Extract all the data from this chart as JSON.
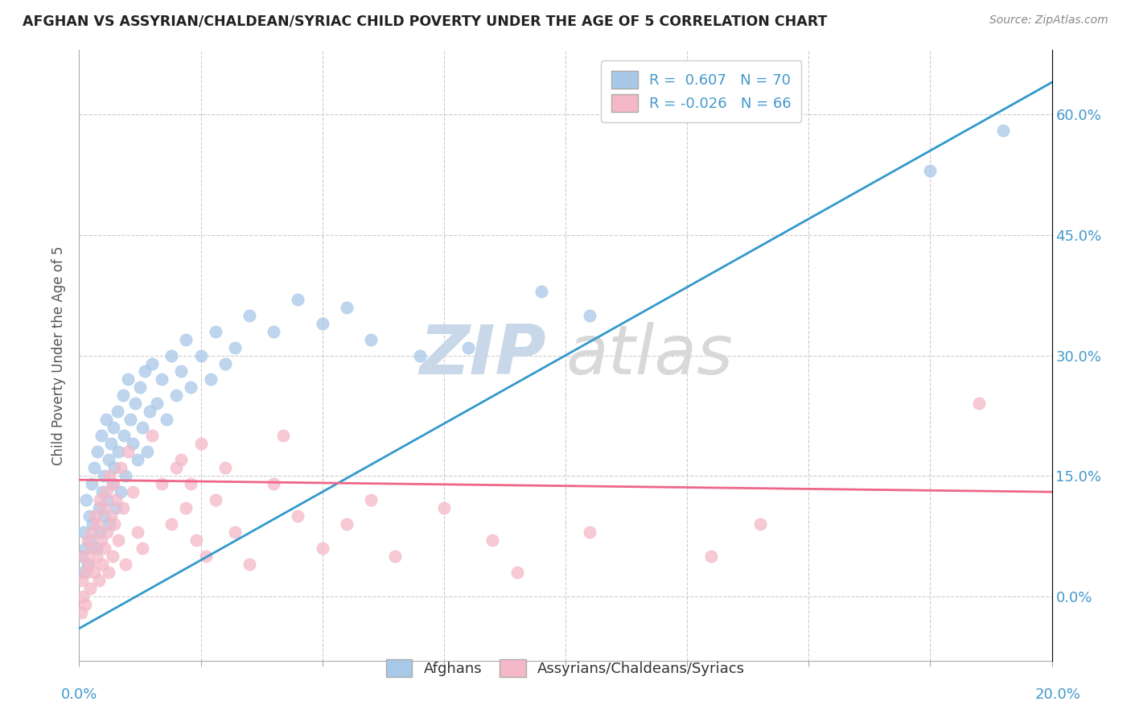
{
  "title": "AFGHAN VS ASSYRIAN/CHALDEAN/SYRIAC CHILD POVERTY UNDER THE AGE OF 5 CORRELATION CHART",
  "source": "Source: ZipAtlas.com",
  "ylabel": "Child Poverty Under the Age of 5",
  "ytick_values": [
    0,
    15,
    30,
    45,
    60
  ],
  "xlim": [
    0,
    20
  ],
  "ylim": [
    -8,
    68
  ],
  "r_afghan": 0.607,
  "n_afghan": 70,
  "r_assyrian": -0.026,
  "n_assyrian": 66,
  "color_afghan": "#a8c8e8",
  "color_assyrian": "#f4b8c8",
  "color_afghan_line": "#3399cc",
  "color_assyrian_line": "#ee6688",
  "color_text_blue": "#4499cc",
  "watermark_color": "#dde8f0",
  "watermark_zip": "ZIP",
  "watermark_atlas": "atlas",
  "legend_label_afghan": "Afghans",
  "legend_label_assyrian": "Assyrians/Chaldeans/Syriacs",
  "afghan_line_x0": 0,
  "afghan_line_y0": -4,
  "afghan_line_x1": 20,
  "afghan_line_y1": 64,
  "assyrian_line_x0": 0,
  "assyrian_line_y0": 14.5,
  "assyrian_line_x1": 20,
  "assyrian_line_y1": 13.0,
  "afghan_x": [
    0.05,
    0.08,
    0.1,
    0.12,
    0.15,
    0.18,
    0.2,
    0.22,
    0.25,
    0.28,
    0.3,
    0.35,
    0.38,
    0.4,
    0.42,
    0.45,
    0.48,
    0.5,
    0.52,
    0.55,
    0.58,
    0.6,
    0.62,
    0.65,
    0.68,
    0.7,
    0.72,
    0.75,
    0.78,
    0.8,
    0.85,
    0.9,
    0.92,
    0.95,
    1.0,
    1.05,
    1.1,
    1.15,
    1.2,
    1.25,
    1.3,
    1.35,
    1.4,
    1.45,
    1.5,
    1.6,
    1.7,
    1.8,
    1.9,
    2.0,
    2.1,
    2.2,
    2.3,
    2.5,
    2.7,
    2.8,
    3.0,
    3.2,
    3.5,
    4.0,
    4.5,
    5.0,
    5.5,
    6.0,
    7.0,
    8.0,
    9.5,
    10.5,
    17.5,
    19.0
  ],
  "afghan_y": [
    5,
    3,
    8,
    6,
    12,
    4,
    10,
    7,
    14,
    9,
    16,
    6,
    18,
    11,
    8,
    20,
    13,
    15,
    10,
    22,
    12,
    17,
    9,
    19,
    14,
    21,
    16,
    11,
    23,
    18,
    13,
    25,
    20,
    15,
    27,
    22,
    19,
    24,
    17,
    26,
    21,
    28,
    18,
    23,
    29,
    24,
    27,
    22,
    30,
    25,
    28,
    32,
    26,
    30,
    27,
    33,
    29,
    31,
    35,
    33,
    37,
    34,
    36,
    32,
    30,
    31,
    38,
    35,
    53,
    58
  ],
  "assyrian_x": [
    0.04,
    0.06,
    0.08,
    0.1,
    0.12,
    0.15,
    0.18,
    0.2,
    0.22,
    0.25,
    0.28,
    0.3,
    0.32,
    0.35,
    0.38,
    0.4,
    0.42,
    0.45,
    0.48,
    0.5,
    0.52,
    0.55,
    0.58,
    0.6,
    0.62,
    0.65,
    0.68,
    0.7,
    0.72,
    0.75,
    0.8,
    0.85,
    0.9,
    0.95,
    1.0,
    1.1,
    1.2,
    1.3,
    1.5,
    1.7,
    1.9,
    2.0,
    2.2,
    2.4,
    2.6,
    2.8,
    3.2,
    3.5,
    4.0,
    4.5,
    5.0,
    5.5,
    6.5,
    7.5,
    8.5,
    9.0,
    10.5,
    13.0,
    14.0,
    18.5,
    2.1,
    2.3,
    2.5,
    3.0,
    4.2,
    6.0
  ],
  "assyrian_y": [
    -2,
    2,
    0,
    5,
    -1,
    3,
    7,
    4,
    1,
    6,
    8,
    3,
    10,
    5,
    9,
    2,
    12,
    7,
    4,
    11,
    6,
    13,
    8,
    3,
    15,
    10,
    5,
    14,
    9,
    12,
    7,
    16,
    11,
    4,
    18,
    13,
    8,
    6,
    20,
    14,
    9,
    16,
    11,
    7,
    5,
    12,
    8,
    4,
    14,
    10,
    6,
    9,
    5,
    11,
    7,
    3,
    8,
    5,
    9,
    24,
    17,
    14,
    19,
    16,
    20,
    12
  ]
}
